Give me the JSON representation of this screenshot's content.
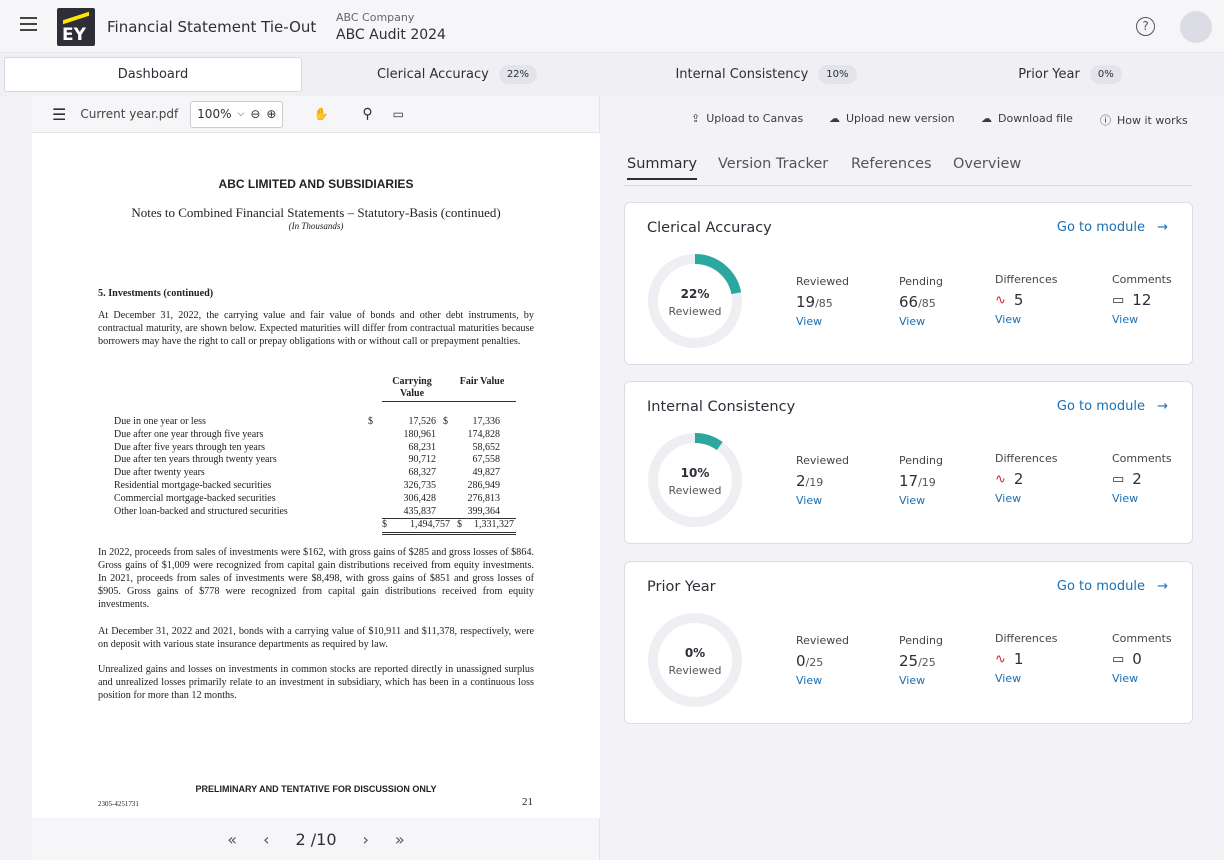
{
  "header": {
    "app_title": "Financial Statement Tie-Out",
    "logo_text": "EY",
    "company": "ABC Company",
    "engagement": "ABC Audit 2024"
  },
  "main_tabs": [
    {
      "label": "Dashboard"
    },
    {
      "label": "Clerical Accuracy",
      "badge": "22%"
    },
    {
      "label": "Internal Consistency",
      "badge": "10%"
    },
    {
      "label": "Prior Year",
      "badge": "0%"
    }
  ],
  "viewer": {
    "file_name": "Current year.pdf",
    "zoom": "100%",
    "page_indicator": "2 /10"
  },
  "document": {
    "company": "ABC LIMITED AND SUBSIDIARIES",
    "title": "Notes to Combined Financial Statements – Statutory-Basis (continued)",
    "subtitle": "(In Thousands)",
    "section": "5. Investments (continued)",
    "intro": "At December 31, 2022, the carrying value and fair value of bonds and other debt instruments, by contractual maturity, are shown below. Expected maturities will differ from contractual maturities because borrowers may have the right to call or prepay obligations with or without call or prepayment penalties.",
    "col1": "Carrying Value",
    "col2": "Fair Value",
    "rows": [
      {
        "label": "Due in one year or less",
        "d1": "$",
        "carrying": "17,526",
        "d2": "$",
        "fair": "17,336"
      },
      {
        "label": "Due after one year through five years",
        "d1": "",
        "carrying": "180,961",
        "d2": "",
        "fair": "174,828"
      },
      {
        "label": "Due after five years through ten years",
        "d1": "",
        "carrying": "68,231",
        "d2": "",
        "fair": "58,652"
      },
      {
        "label": "Due after ten years through twenty years",
        "d1": "",
        "carrying": "90,712",
        "d2": "",
        "fair": "67,558"
      },
      {
        "label": "Due after twenty years",
        "d1": "",
        "carrying": "68,327",
        "d2": "",
        "fair": "49,827"
      },
      {
        "label": "Residential mortgage-backed securities",
        "d1": "",
        "carrying": "326,735",
        "d2": "",
        "fair": "286,949"
      },
      {
        "label": "Commercial mortgage-backed securities",
        "d1": "",
        "carrying": "306,428",
        "d2": "",
        "fair": "276,813"
      },
      {
        "label": "Other loan-backed and structured securities",
        "d1": "",
        "carrying": "435,837",
        "d2": "",
        "fair": "399,364"
      }
    ],
    "total": {
      "d1": "$",
      "carrying": "1,494,757",
      "d2": "$",
      "fair": "1,331,327"
    },
    "para1": "In 2022, proceeds from sales of investments were $162, with gross gains of $285 and gross losses of $864. Gross gains of $1,009 were recognized from capital gain distributions received from equity investments. In 2021, proceeds from sales of investments were $8,498, with gross gains of $851 and gross losses of $905. Gross gains of $778 were recognized from capital gain distributions received from equity investments.",
    "para2": "At December 31, 2022 and 2021, bonds with a carrying value of $10,911 and $11,378, respectively, were on deposit with various state insurance departments as required by law.",
    "para3": "Unrealized gains and losses on investments in common stocks are reported directly in unassigned surplus and unrealized losses primarily relate to an investment in subsidiary, which has been in a continuous loss position for more than 12 months.",
    "footer": "PRELIMINARY AND TENTATIVE FOR DISCUSSION ONLY",
    "doc_id": "2305-4251731",
    "page_number": "21"
  },
  "actions": {
    "upload_canvas": "Upload to Canvas",
    "upload_version": "Upload new version",
    "download": "Download file",
    "how": "How it works"
  },
  "right_tabs": [
    "Summary",
    "Version Tracker",
    "References",
    "Overview"
  ],
  "labels": {
    "go": "Go to module",
    "reviewed": "Reviewed",
    "pending": "Pending",
    "differences": "Differences",
    "comments": "Comments",
    "view": "View",
    "donut_sub": "Reviewed"
  },
  "colors": {
    "accent": "#2aa79f",
    "link": "#1a6fb3",
    "diff": "#d0283c"
  },
  "cards": [
    {
      "title": "Clerical Accuracy",
      "percent": 22,
      "percent_label": "22%",
      "reviewed": "19",
      "pending": "66",
      "total": "/85",
      "differences": "5",
      "comments": "12"
    },
    {
      "title": "Internal Consistency",
      "percent": 10,
      "percent_label": "10%",
      "reviewed": "2",
      "pending": "17",
      "total": "/19",
      "differences": "2",
      "comments": "2"
    },
    {
      "title": "Prior Year",
      "percent": 0,
      "percent_label": "0%",
      "reviewed": "0",
      "pending": "25",
      "total": "/25",
      "differences": "1",
      "comments": "0"
    }
  ]
}
